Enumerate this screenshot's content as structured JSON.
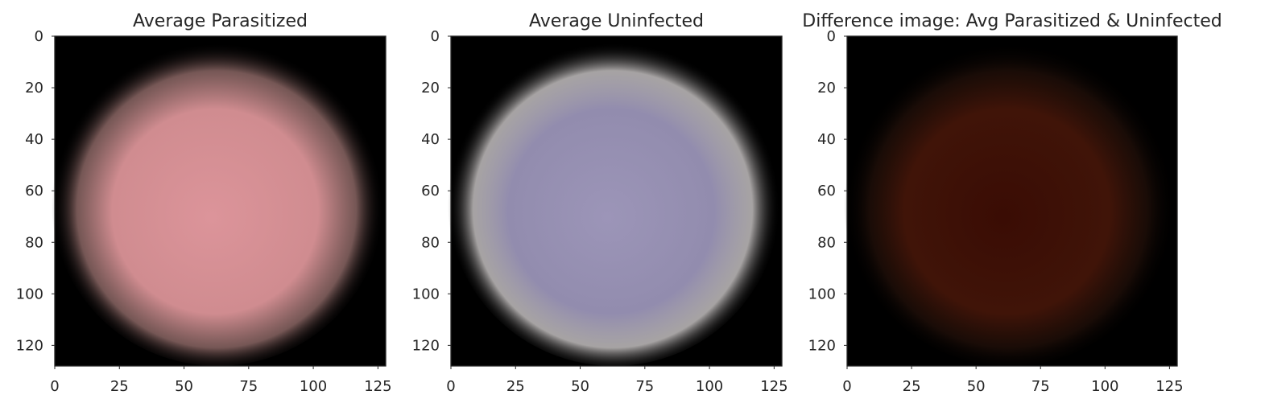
{
  "chart_data": [
    {
      "type": "heatmap",
      "title": "Average Parasitized",
      "xlim": [
        0,
        128
      ],
      "ylim": [
        128,
        0
      ],
      "xticks": [
        0,
        25,
        50,
        75,
        100,
        125
      ],
      "yticks": [
        0,
        20,
        40,
        60,
        80,
        100,
        120
      ],
      "grid": false,
      "colors": {
        "center": "#dc949a",
        "mid": "#d08c90",
        "rim": "#8a6664",
        "background": "#000000"
      }
    },
    {
      "type": "heatmap",
      "title": "Average Uninfected",
      "xlim": [
        0,
        128
      ],
      "ylim": [
        128,
        0
      ],
      "xticks": [
        0,
        25,
        50,
        75,
        100,
        125
      ],
      "yticks": [
        0,
        20,
        40,
        60,
        80,
        100,
        120
      ],
      "grid": false,
      "colors": {
        "center": "#9c95b8",
        "mid": "#928cae",
        "rim": "#c4c0c0",
        "background": "#000000"
      }
    },
    {
      "type": "heatmap",
      "title": "Difference image: Avg Parasitized & Uninfected",
      "xlim": [
        0,
        128
      ],
      "ylim": [
        128,
        0
      ],
      "xticks": [
        0,
        25,
        50,
        75,
        100,
        125
      ],
      "yticks": [
        0,
        20,
        40,
        60,
        80,
        100,
        120
      ],
      "grid": false,
      "colors": {
        "center": "#3a0c04",
        "mid": "#401408",
        "rim": "#1e0e08",
        "background": "#000000"
      }
    }
  ]
}
